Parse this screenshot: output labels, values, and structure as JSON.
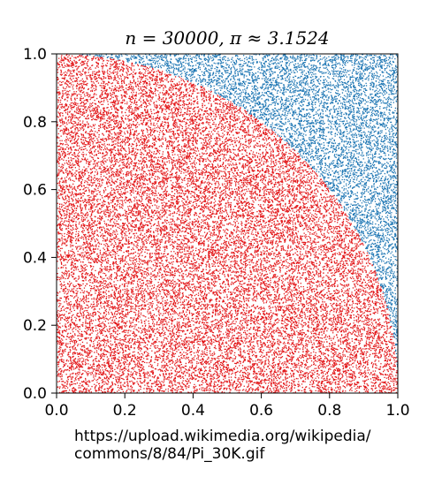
{
  "chart_data": {
    "type": "scatter",
    "title": "n = 30000, π ≈ 3.1524",
    "n": 30000,
    "pi_estimate": 3.1524,
    "xlabel": "",
    "ylabel": "",
    "xlim": [
      0.0,
      1.0
    ],
    "ylim": [
      0.0,
      1.0
    ],
    "x_ticks": [
      "0.0",
      "0.2",
      "0.4",
      "0.6",
      "0.8",
      "1.0"
    ],
    "y_ticks": [
      "0.0",
      "0.2",
      "0.4",
      "0.6",
      "0.8",
      "1.0"
    ],
    "grid": false,
    "legend": "none",
    "boundary": {
      "shape": "quarter-circle",
      "center": [
        0,
        0
      ],
      "radius": 1.0
    },
    "series": [
      {
        "region": "inside",
        "color": "#e31a1c",
        "count": 23643
      },
      {
        "region": "outside",
        "color": "#1f77b4",
        "count": 6357
      }
    ]
  },
  "caption": {
    "line1": "https://upload.wikimedia.org/wikipedia/",
    "line2": "commons/8/84/Pi_30K.gif"
  }
}
